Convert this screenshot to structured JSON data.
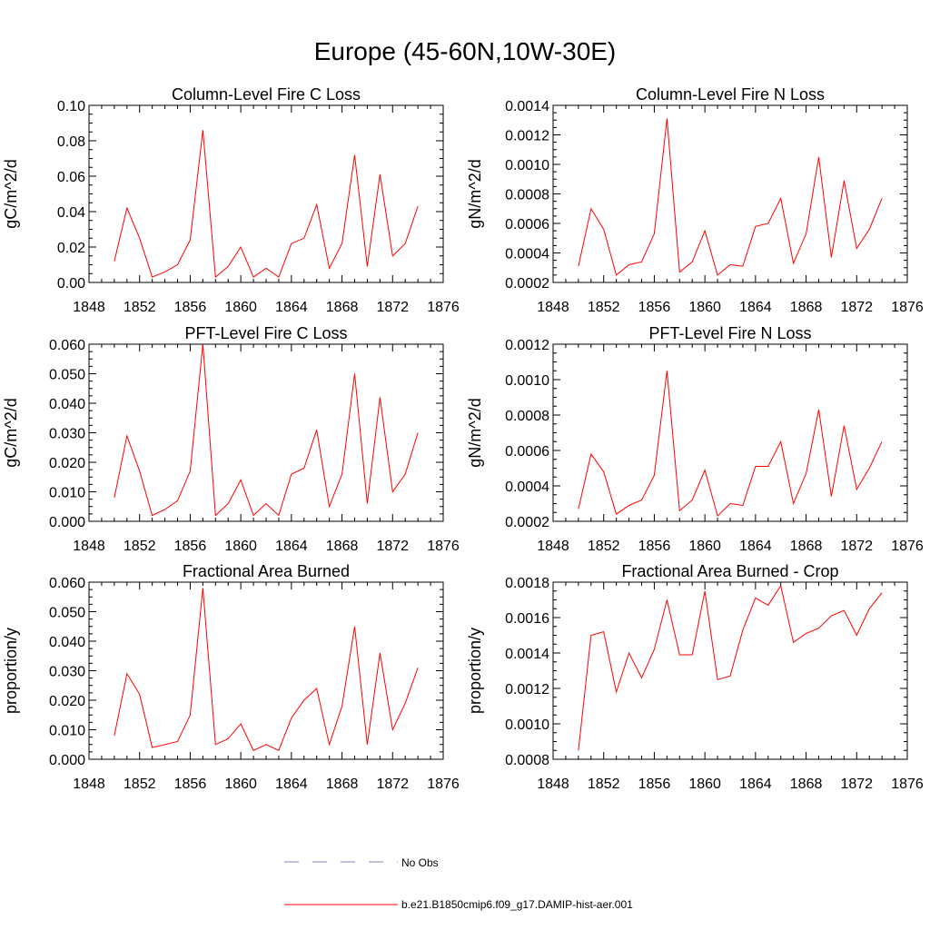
{
  "title": "Europe (45-60N,10W-30E)",
  "colors": {
    "model": "#ff0000",
    "obs": "#8080c0",
    "axis": "#000000"
  },
  "legend": {
    "obs_label": "No Obs",
    "model_label": "b.e21.B1850cmip6.f09_g17.DAMIP-hist-aer.001"
  },
  "chart_data": [
    {
      "type": "line",
      "title": "Column-Level Fire C Loss",
      "ylabel": "gC/m^2/d",
      "xlim": [
        1848,
        1876
      ],
      "xticks": [
        "1848",
        "1852",
        "1856",
        "1860",
        "1864",
        "1868",
        "1872",
        "1876"
      ],
      "ylim": [
        0.0,
        0.1
      ],
      "yticks": [
        "0.00",
        "0.02",
        "0.04",
        "0.06",
        "0.08",
        "0.10"
      ],
      "x": [
        1850,
        1851,
        1852,
        1853,
        1854,
        1855,
        1856,
        1857,
        1858,
        1859,
        1860,
        1861,
        1862,
        1863,
        1864,
        1865,
        1866,
        1867,
        1868,
        1869,
        1870,
        1871,
        1872,
        1873,
        1874
      ],
      "values": [
        0.012,
        0.042,
        0.025,
        0.003,
        0.006,
        0.01,
        0.024,
        0.086,
        0.003,
        0.009,
        0.02,
        0.003,
        0.008,
        0.003,
        0.022,
        0.025,
        0.044,
        0.008,
        0.022,
        0.072,
        0.009,
        0.061,
        0.015,
        0.022,
        0.043
      ]
    },
    {
      "type": "line",
      "title": "Column-Level Fire N Loss",
      "ylabel": "gN/m^2/d",
      "xlim": [
        1848,
        1876
      ],
      "xticks": [
        "1848",
        "1852",
        "1856",
        "1860",
        "1864",
        "1868",
        "1872",
        "1876"
      ],
      "ylim": [
        0.0002,
        0.0014
      ],
      "yticks": [
        "0.0002",
        "0.0004",
        "0.0006",
        "0.0008",
        "0.0010",
        "0.0012",
        "0.0014"
      ],
      "x": [
        1850,
        1851,
        1852,
        1853,
        1854,
        1855,
        1856,
        1857,
        1858,
        1859,
        1860,
        1861,
        1862,
        1863,
        1864,
        1865,
        1866,
        1867,
        1868,
        1869,
        1870,
        1871,
        1872,
        1873,
        1874
      ],
      "values": [
        0.00031,
        0.0007,
        0.00056,
        0.00025,
        0.00032,
        0.00034,
        0.00053,
        0.00131,
        0.00027,
        0.00034,
        0.00055,
        0.00025,
        0.00032,
        0.00031,
        0.00058,
        0.0006,
        0.00077,
        0.00033,
        0.00053,
        0.00105,
        0.00037,
        0.00089,
        0.00043,
        0.00056,
        0.00077
      ]
    },
    {
      "type": "line",
      "title": "PFT-Level Fire C Loss",
      "ylabel": "gC/m^2/d",
      "xlim": [
        1848,
        1876
      ],
      "xticks": [
        "1848",
        "1852",
        "1856",
        "1860",
        "1864",
        "1868",
        "1872",
        "1876"
      ],
      "ylim": [
        0.0,
        0.06
      ],
      "yticks": [
        "0.000",
        "0.010",
        "0.020",
        "0.030",
        "0.040",
        "0.050",
        "0.060"
      ],
      "x": [
        1850,
        1851,
        1852,
        1853,
        1854,
        1855,
        1856,
        1857,
        1858,
        1859,
        1860,
        1861,
        1862,
        1863,
        1864,
        1865,
        1866,
        1867,
        1868,
        1869,
        1870,
        1871,
        1872,
        1873,
        1874
      ],
      "values": [
        0.008,
        0.029,
        0.017,
        0.002,
        0.004,
        0.007,
        0.017,
        0.06,
        0.002,
        0.006,
        0.014,
        0.002,
        0.006,
        0.002,
        0.016,
        0.018,
        0.031,
        0.005,
        0.016,
        0.05,
        0.006,
        0.042,
        0.01,
        0.016,
        0.03
      ]
    },
    {
      "type": "line",
      "title": "PFT-Level Fire N Loss",
      "ylabel": "gN/m^2/d",
      "xlim": [
        1848,
        1876
      ],
      "xticks": [
        "1848",
        "1852",
        "1856",
        "1860",
        "1864",
        "1868",
        "1872",
        "1876"
      ],
      "ylim": [
        0.0002,
        0.0012
      ],
      "yticks": [
        "0.0002",
        "0.0004",
        "0.0006",
        "0.0008",
        "0.0010",
        "0.0012"
      ],
      "x": [
        1850,
        1851,
        1852,
        1853,
        1854,
        1855,
        1856,
        1857,
        1858,
        1859,
        1860,
        1861,
        1862,
        1863,
        1864,
        1865,
        1866,
        1867,
        1868,
        1869,
        1870,
        1871,
        1872,
        1873,
        1874
      ],
      "values": [
        0.00027,
        0.00058,
        0.00048,
        0.00024,
        0.00029,
        0.00032,
        0.00046,
        0.00105,
        0.00026,
        0.00032,
        0.00049,
        0.00023,
        0.0003,
        0.00029,
        0.00051,
        0.00051,
        0.00065,
        0.0003,
        0.00047,
        0.00083,
        0.00034,
        0.00074,
        0.00038,
        0.0005,
        0.00065
      ]
    },
    {
      "type": "line",
      "title": "Fractional Area Burned",
      "ylabel": "proportion/y",
      "xlim": [
        1848,
        1876
      ],
      "xticks": [
        "1848",
        "1852",
        "1856",
        "1860",
        "1864",
        "1868",
        "1872",
        "1876"
      ],
      "ylim": [
        0.0,
        0.06
      ],
      "yticks": [
        "0.000",
        "0.010",
        "0.020",
        "0.030",
        "0.040",
        "0.050",
        "0.060"
      ],
      "x": [
        1850,
        1851,
        1852,
        1853,
        1854,
        1855,
        1856,
        1857,
        1858,
        1859,
        1860,
        1861,
        1862,
        1863,
        1864,
        1865,
        1866,
        1867,
        1868,
        1869,
        1870,
        1871,
        1872,
        1873,
        1874
      ],
      "values": [
        0.008,
        0.029,
        0.022,
        0.004,
        0.005,
        0.006,
        0.015,
        0.058,
        0.005,
        0.007,
        0.012,
        0.003,
        0.005,
        0.003,
        0.014,
        0.02,
        0.024,
        0.005,
        0.018,
        0.045,
        0.005,
        0.036,
        0.01,
        0.019,
        0.031
      ]
    },
    {
      "type": "line",
      "title": "Fractional Area Burned - Crop",
      "ylabel": "proportion/y",
      "xlim": [
        1848,
        1876
      ],
      "xticks": [
        "1848",
        "1852",
        "1856",
        "1860",
        "1864",
        "1868",
        "1872",
        "1876"
      ],
      "ylim": [
        0.0008,
        0.0018
      ],
      "yticks": [
        "0.0008",
        "0.0010",
        "0.0012",
        "0.0014",
        "0.0016",
        "0.0018"
      ],
      "x": [
        1850,
        1851,
        1852,
        1853,
        1854,
        1855,
        1856,
        1857,
        1858,
        1859,
        1860,
        1861,
        1862,
        1863,
        1864,
        1865,
        1866,
        1867,
        1868,
        1869,
        1870,
        1871,
        1872,
        1873,
        1874
      ],
      "values": [
        0.00085,
        0.0015,
        0.00152,
        0.00118,
        0.0014,
        0.00126,
        0.00142,
        0.0017,
        0.00139,
        0.00139,
        0.00175,
        0.00125,
        0.00127,
        0.00153,
        0.00171,
        0.00167,
        0.00178,
        0.00146,
        0.00151,
        0.00154,
        0.00161,
        0.00164,
        0.0015,
        0.00165,
        0.00174
      ]
    }
  ]
}
